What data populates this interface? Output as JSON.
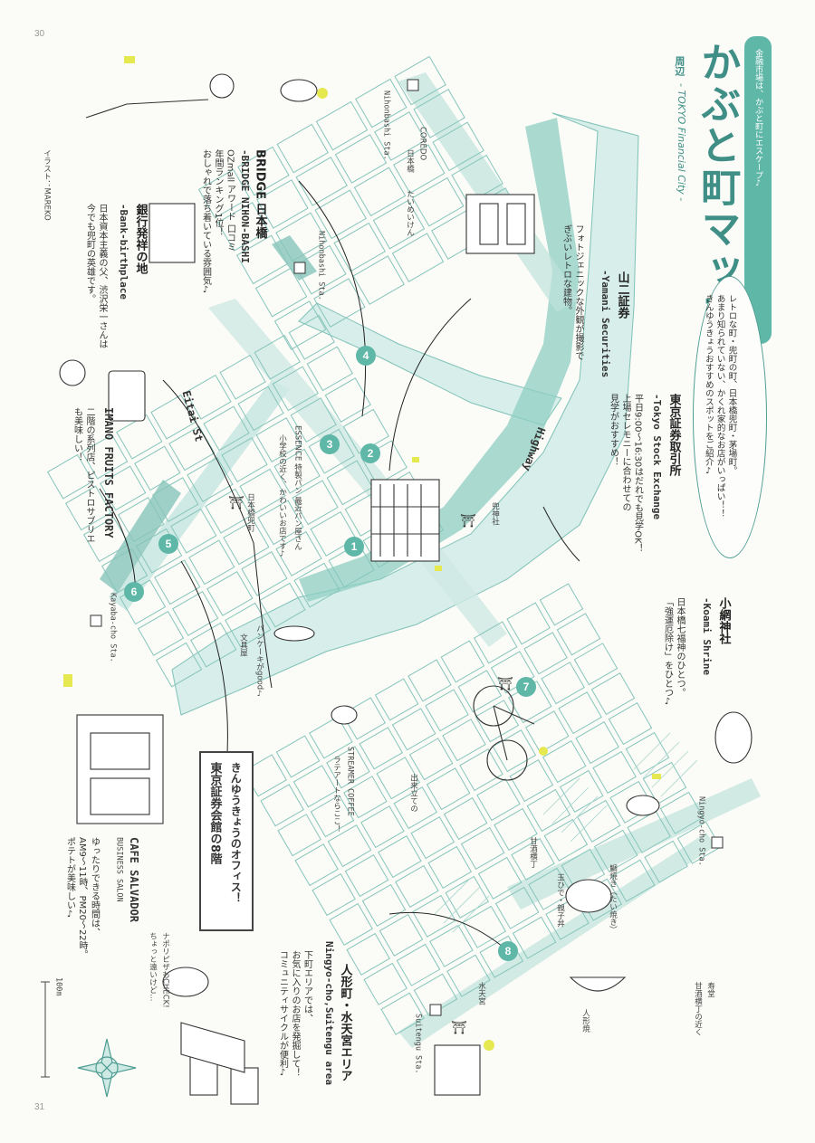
{
  "page_numbers": {
    "top": "30",
    "bottom": "31"
  },
  "header": {
    "title": "かぶと町マップ",
    "title_suffix": "周辺",
    "subtitle": "- TOKYO Financial City -",
    "tagline": "金融市場は、かぶと町にエスケープ♪"
  },
  "intro": {
    "lines": [
      "レトロな町・兜町の町、日本橋兜町・茅場町。",
      "あまり知られていない、かくれ家的なお店がいっぱい！！",
      "きんゆうきょうおすすめのスポットをご紹介♪"
    ]
  },
  "spots": {
    "yamani": {
      "jp": "山二証券",
      "en": "-Yamani Securities",
      "desc": [
        "フォトジェニックな外観が撮影で",
        "ぎぶいレトロな建物。"
      ]
    },
    "tse": {
      "jp": "東京証券取引所",
      "en": "-Tokyo Stock Exchange",
      "desc": [
        "平日9:00〜16:30はだれでも見学OK！",
        "上場セレモニーに合わせての",
        "見学がおすすめ！"
      ]
    },
    "koami": {
      "jp": "小網神社",
      "en": "-Koami Shrine",
      "desc": [
        "日本橋七福神のひとつ。",
        "「強運厄除け」をひとつ♪"
      ]
    },
    "bridge": {
      "jp": "BRIDGE 日本橋",
      "en": "-BRIDGE NIHON-BASHI",
      "desc": [
        "OZmall アワード 口コミ",
        "年間ランキング1位！",
        "おしゃれで落ち着いている雰囲気♪"
      ]
    },
    "bank": {
      "jp": "銀行発祥の地",
      "en": "-Bank-birthplace",
      "desc": [
        "日本資本主義の父、渋沢栄一さんは",
        "今でも兜町の英雄です。"
      ]
    },
    "imano": {
      "jp": "IMANO FRUITS FACTORY",
      "desc": [
        "二階の系列店、ピストロサブリエ",
        "も美味しい！"
      ]
    },
    "salvador": {
      "jp": "CAFE SALVADOR",
      "en": "BUSINESS SALON",
      "desc": [
        "ゆったりできる時間は、",
        "AM9〜11時、PM20〜22時。",
        "ポテトが美味しい♪"
      ]
    },
    "ningyocho": {
      "jp": "人形町・水天宮エリア",
      "en": "Ningyo-cho,Suitengu area",
      "desc": [
        "下町エリアでは、",
        "お気に入りのお店を発掘して！",
        "コミュニティサイクルが便利♪"
      ]
    }
  },
  "office": {
    "line1": "きんゆうきょうのオフィス！",
    "line2": "東京証券会館の8階"
  },
  "map_labels": {
    "eitai": "Eitai St",
    "highway": "Highway",
    "nihonbashi_sta1": "Nihonbashi Sta.",
    "nihonbashi_sta2": "Nihonbashi Sta.",
    "kayabacho": "Kayaba-cho Sta.",
    "ningyocho_sta": "Ningyo-cho Sta.",
    "suitengu_sta": "Suitengu Sta.",
    "coredo": "COREDO",
    "coredo_sub": "日本橋",
    "taimeiken": "たいめいけん",
    "essence": "ESSENCE 特製パン 最近パン屋さん",
    "essence_sub": "小学校の近く、かわいいお店です♪",
    "kabuto": "兜神社",
    "kabutobashi": "日本橋兜町",
    "kyoryuchi": "鎧橋",
    "hotcake": "パンケーキがgood♪",
    "bunzo": "文具屋",
    "streamer": "STREAMER COFFEE",
    "streamer_sub": "ラテアートならここ！",
    "amazake": "甘酒横丁",
    "kidoriya": "玉ひで・親子丼",
    "tsujiya": "鯛焼き（たい焼き）",
    "tamahide": "出来立ての",
    "nishiki": "人形焼",
    "suitengu": "水天宮",
    "tsuruya": "寿堂",
    "kotobuki": "甘酒横丁の近く",
    "yumoto": "ナポリピザ",
    "mino": "チーズケーキ",
    "pizza_check": "ナポリピザもCHECK!",
    "pizza_sub": "ちょっと遠いけど…",
    "credit": "イラスト：MAREKO",
    "scale": "100m",
    "ask": "問い合わせ先"
  },
  "markers": [
    "1",
    "2",
    "3",
    "4",
    "5",
    "6",
    "7",
    "8"
  ],
  "colors": {
    "accent": "#5fb7a8",
    "river": "#cfe9e4",
    "road": "#9fd0c7",
    "highlight": "#e6e850"
  }
}
